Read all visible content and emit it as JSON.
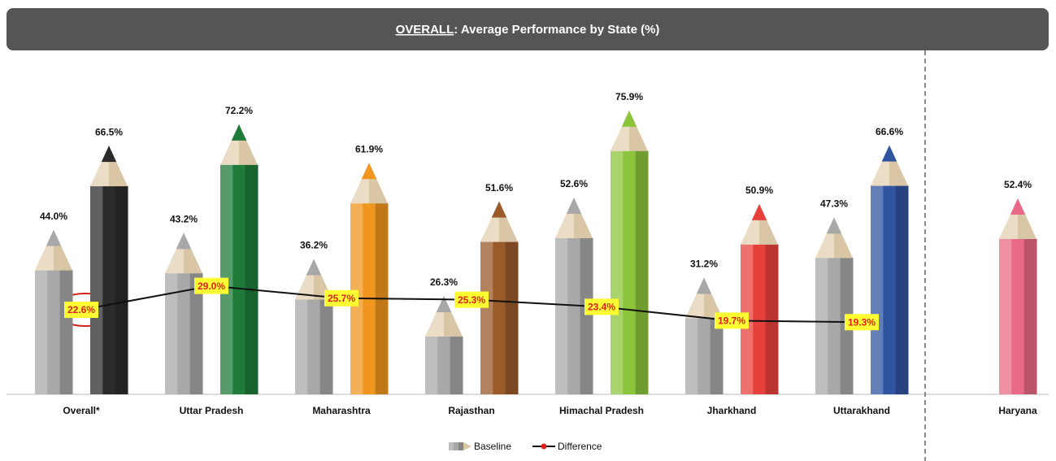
{
  "chart_data": {
    "type": "pencil-bar",
    "title_parts": [
      "OVERALL",
      ": Average Performance by State (%)"
    ],
    "categories": [
      "Overall*",
      "Uttar Pradesh",
      "Maharashtra",
      "Rajasthan",
      "Himachal Pradesh",
      "Jharkhand",
      "Uttarakhand",
      "Haryana"
    ],
    "ylim": [
      0,
      100
    ],
    "series": [
      {
        "name": "Baseline",
        "color": "#a8a8a8",
        "values": [
          44.0,
          43.2,
          36.2,
          26.3,
          52.6,
          31.2,
          47.3,
          null
        ],
        "value_labels": [
          "44.0%",
          "43.2%",
          "36.2%",
          "26.3%",
          "52.6%",
          "31.2%",
          "47.3%",
          null
        ]
      },
      {
        "colors": [
          "#2b2b2b",
          "#1e7b3a",
          "#f0961e",
          "#9a5a2a",
          "#8cc43c",
          "#e8413c",
          "#2f54a0",
          "#e86a86"
        ],
        "values": [
          66.5,
          72.2,
          61.9,
          51.6,
          75.9,
          50.9,
          66.6,
          52.4
        ],
        "value_labels": [
          "66.5%",
          "72.2%",
          "61.9%",
          "51.6%",
          "75.9%",
          "50.9%",
          "66.6%",
          "52.4%"
        ]
      },
      {
        "name": "Difference",
        "type": "line",
        "color": "#111111",
        "marker_color": "#e0201a",
        "label_background": "#ffff33",
        "values": [
          22.6,
          29.0,
          25.7,
          25.3,
          23.4,
          19.7,
          19.3,
          null
        ],
        "value_labels": [
          "22.6%",
          "29.0%",
          "25.7%",
          "25.3%",
          "23.4%",
          "19.7%",
          "19.3%",
          null
        ]
      }
    ]
  }
}
